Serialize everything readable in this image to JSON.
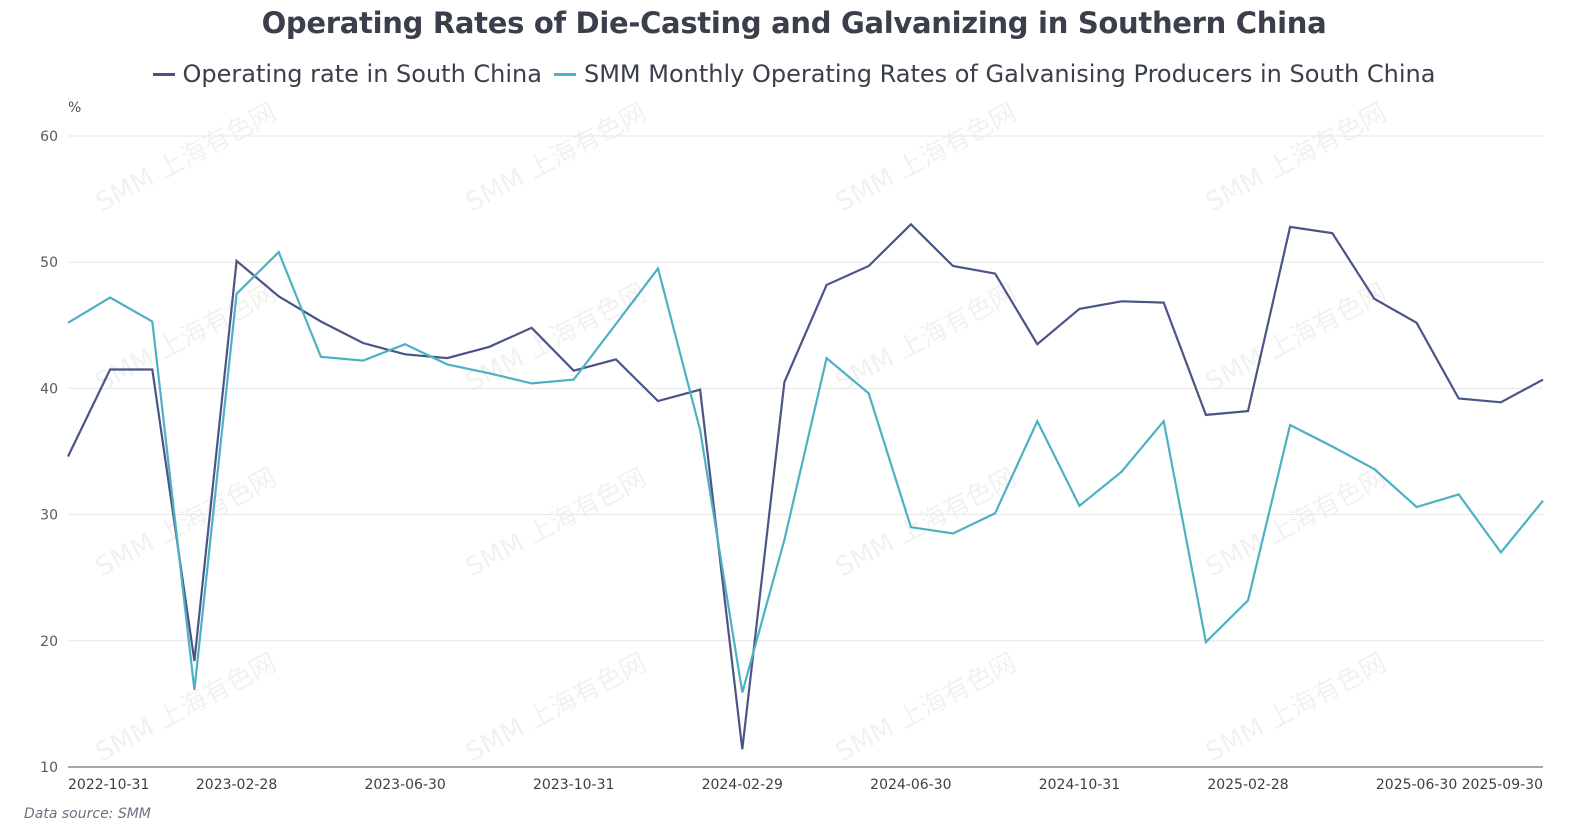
{
  "chart_data": {
    "type": "line",
    "title": "Operating Rates of Die-Casting and Galvanizing in Southern China",
    "ylabel": "%",
    "xlabel": "",
    "ylim": [
      10,
      60
    ],
    "yticks": [
      10,
      20,
      30,
      40,
      50,
      60
    ],
    "grid": true,
    "legend_position": "top-center",
    "x": [
      "2022-10-31",
      "2022-11-30",
      "2022-12-31",
      "2023-01-31",
      "2023-02-28",
      "2023-03-31",
      "2023-04-30",
      "2023-05-31",
      "2023-06-30",
      "2023-07-31",
      "2023-08-31",
      "2023-09-30",
      "2023-10-31",
      "2023-11-30",
      "2023-12-31",
      "2024-01-31",
      "2024-02-29",
      "2024-03-31",
      "2024-04-30",
      "2024-05-31",
      "2024-06-30",
      "2024-07-31",
      "2024-08-31",
      "2024-09-30",
      "2024-10-31",
      "2024-11-30",
      "2024-12-31",
      "2025-01-31",
      "2025-02-28",
      "2025-03-31",
      "2025-04-30",
      "2025-05-31",
      "2025-06-30",
      "2025-07-31",
      "2025-08-31",
      "2025-09-30"
    ],
    "xtick_labels": [
      {
        "index": 0,
        "label": "2022-10-31"
      },
      {
        "index": 4,
        "label": "2023-02-28"
      },
      {
        "index": 8,
        "label": "2023-06-30"
      },
      {
        "index": 12,
        "label": "2023-10-31"
      },
      {
        "index": 16,
        "label": "2024-02-29"
      },
      {
        "index": 20,
        "label": "2024-06-30"
      },
      {
        "index": 24,
        "label": "2024-10-31"
      },
      {
        "index": 28,
        "label": "2025-02-28"
      },
      {
        "index": 32,
        "label": "2025-06-30"
      },
      {
        "index": 35,
        "label": "2025-09-30"
      }
    ],
    "series": [
      {
        "name": "Operating rate in South China",
        "color": "#4a5585",
        "values": [
          34.6,
          41.5,
          41.5,
          18.4,
          50.1,
          47.3,
          45.3,
          43.6,
          42.7,
          42.4,
          43.3,
          44.8,
          41.4,
          42.3,
          39.0,
          39.9,
          11.4,
          40.5,
          48.2,
          49.7,
          53.0,
          49.7,
          49.1,
          43.5,
          46.3,
          46.9,
          46.8,
          37.9,
          38.2,
          52.8,
          52.3,
          47.1,
          45.2,
          39.2,
          38.9,
          40.7
        ]
      },
      {
        "name": "SMM Monthly Operating Rates of Galvanising Producers in South China",
        "color": "#4cb1c2",
        "values": [
          45.2,
          47.2,
          45.3,
          16.1,
          47.5,
          50.8,
          42.5,
          42.2,
          43.5,
          41.9,
          41.2,
          40.4,
          40.7,
          45.1,
          49.5,
          36.7,
          15.9,
          28.0,
          42.4,
          39.6,
          29.0,
          28.5,
          30.1,
          37.4,
          30.7,
          33.4,
          37.4,
          19.9,
          23.2,
          37.1,
          35.4,
          33.6,
          30.6,
          31.6,
          27.0,
          31.1
        ]
      }
    ]
  },
  "legend": [
    {
      "label": "Operating rate in South China",
      "color": "#4a5585"
    },
    {
      "label": "SMM Monthly Operating Rates of Galvanising Producers in South China",
      "color": "#4cb1c2"
    }
  ],
  "watermark_text": "SMM 上海有色网",
  "source_text": "Data source:  SMM",
  "colors": {
    "gridline": "#e6e6e6",
    "axis": "#6e7079"
  }
}
